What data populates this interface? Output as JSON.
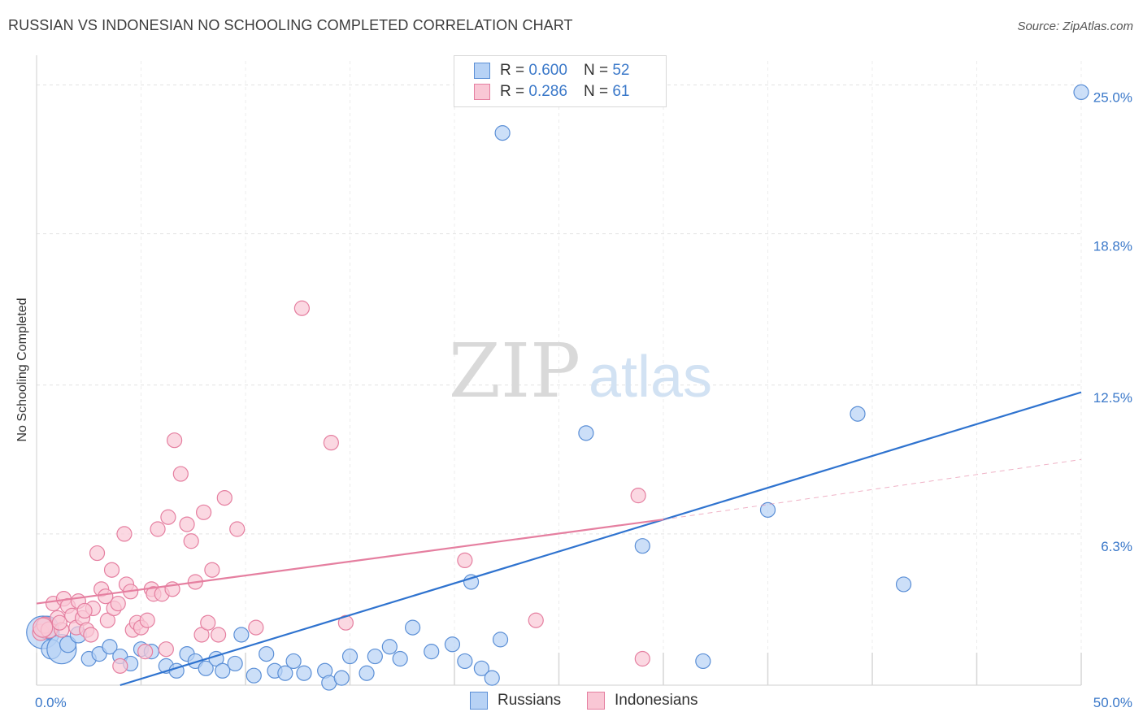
{
  "header": {
    "title": "RUSSIAN VS INDONESIAN NO SCHOOLING COMPLETED CORRELATION CHART",
    "source": "Source: ZipAtlas.com"
  },
  "watermark": {
    "zip": "ZIP",
    "atlas": "atlas"
  },
  "legend": {
    "r_label": "R =",
    "n_label": "N =",
    "rows": [
      {
        "name": "Russians",
        "r": "0.600",
        "n": "52",
        "fill": "#b7d2f5",
        "stroke": "#5b8fd6"
      },
      {
        "name": "Indonesians",
        "r": "0.286",
        "n": "61",
        "fill": "#f9c7d5",
        "stroke": "#e57fa0"
      }
    ]
  },
  "chart_data": {
    "type": "scatter",
    "title": "RUSSIAN VS INDONESIAN NO SCHOOLING COMPLETED CORRELATION CHART",
    "xlabel": "",
    "ylabel": "No Schooling Completed",
    "xlim": [
      0,
      50
    ],
    "ylim": [
      0,
      26
    ],
    "x_tick_labels": [
      "0.0%",
      "50.0%"
    ],
    "y_ticks": [
      6.3,
      12.5,
      18.8,
      25.0
    ],
    "y_tick_labels": [
      "6.3%",
      "12.5%",
      "18.8%",
      "25.0%"
    ],
    "grid": true,
    "series": [
      {
        "name": "Russians",
        "color": "#5b8fd6",
        "fill": "#b7d2f5",
        "points": [
          [
            0.3,
            2.2,
            20
          ],
          [
            0.5,
            2.4,
            14
          ],
          [
            0.7,
            1.5,
            12
          ],
          [
            1.2,
            1.5,
            18
          ],
          [
            1.5,
            1.7,
            10
          ],
          [
            2.0,
            2.1,
            10
          ],
          [
            2.5,
            1.1,
            9
          ],
          [
            3.0,
            1.3,
            9
          ],
          [
            3.5,
            1.6,
            9
          ],
          [
            4.0,
            1.2,
            9
          ],
          [
            4.5,
            0.9,
            9
          ],
          [
            5.0,
            1.5,
            9
          ],
          [
            5.5,
            1.4,
            9
          ],
          [
            6.2,
            0.8,
            9
          ],
          [
            6.7,
            0.6,
            9
          ],
          [
            7.2,
            1.3,
            9
          ],
          [
            7.6,
            1.0,
            9
          ],
          [
            8.1,
            0.7,
            9
          ],
          [
            8.6,
            1.1,
            9
          ],
          [
            8.9,
            0.6,
            9
          ],
          [
            9.5,
            0.9,
            9
          ],
          [
            9.8,
            2.1,
            9
          ],
          [
            10.4,
            0.4,
            9
          ],
          [
            11.0,
            1.3,
            9
          ],
          [
            11.4,
            0.6,
            9
          ],
          [
            11.9,
            0.5,
            9
          ],
          [
            12.3,
            1.0,
            9
          ],
          [
            12.8,
            0.5,
            9
          ],
          [
            13.8,
            0.6,
            9
          ],
          [
            14.0,
            0.1,
            9
          ],
          [
            14.6,
            0.3,
            9
          ],
          [
            15.0,
            1.2,
            9
          ],
          [
            15.8,
            0.5,
            9
          ],
          [
            16.2,
            1.2,
            9
          ],
          [
            16.9,
            1.6,
            9
          ],
          [
            17.4,
            1.1,
            9
          ],
          [
            18.0,
            2.4,
            9
          ],
          [
            18.9,
            1.4,
            9
          ],
          [
            19.9,
            1.7,
            9
          ],
          [
            20.5,
            1.0,
            9
          ],
          [
            20.8,
            4.3,
            9
          ],
          [
            21.3,
            0.7,
            9
          ],
          [
            21.8,
            0.3,
            9
          ],
          [
            22.2,
            1.9,
            9
          ],
          [
            22.3,
            23.0,
            9
          ],
          [
            26.3,
            10.5,
            9
          ],
          [
            29.0,
            5.8,
            9
          ],
          [
            31.9,
            1.0,
            9
          ],
          [
            35.0,
            7.3,
            9
          ],
          [
            39.3,
            11.3,
            9
          ],
          [
            41.5,
            4.2,
            9
          ],
          [
            50.0,
            24.7,
            9
          ]
        ],
        "trend": {
          "x": [
            4.0,
            50.0
          ],
          "y": [
            0.0,
            12.2
          ]
        }
      },
      {
        "name": "Indonesians",
        "color": "#e57fa0",
        "fill": "#f9c7d5",
        "points": [
          [
            0.2,
            2.2,
            10
          ],
          [
            0.4,
            2.5,
            10
          ],
          [
            0.6,
            2.3,
            10
          ],
          [
            0.8,
            3.4,
            9
          ],
          [
            1.0,
            2.8,
            9
          ],
          [
            1.2,
            2.3,
            9
          ],
          [
            1.3,
            3.6,
            9
          ],
          [
            1.5,
            3.3,
            9
          ],
          [
            1.7,
            2.9,
            9
          ],
          [
            1.9,
            2.4,
            9
          ],
          [
            2.0,
            3.5,
            9
          ],
          [
            2.2,
            2.8,
            9
          ],
          [
            2.4,
            2.3,
            9
          ],
          [
            2.6,
            2.1,
            9
          ],
          [
            2.7,
            3.2,
            9
          ],
          [
            2.9,
            5.5,
            9
          ],
          [
            3.1,
            4.0,
            9
          ],
          [
            3.3,
            3.7,
            9
          ],
          [
            3.4,
            2.7,
            9
          ],
          [
            3.6,
            4.8,
            9
          ],
          [
            3.7,
            3.2,
            9
          ],
          [
            3.9,
            3.4,
            9
          ],
          [
            4.0,
            0.8,
            9
          ],
          [
            4.2,
            6.3,
            9
          ],
          [
            4.3,
            4.2,
            9
          ],
          [
            4.5,
            3.9,
            9
          ],
          [
            4.6,
            2.3,
            9
          ],
          [
            4.8,
            2.6,
            9
          ],
          [
            5.0,
            2.4,
            9
          ],
          [
            5.2,
            1.4,
            9
          ],
          [
            5.3,
            2.7,
            9
          ],
          [
            5.5,
            4.0,
            9
          ],
          [
            5.6,
            3.8,
            9
          ],
          [
            5.8,
            6.5,
            9
          ],
          [
            6.0,
            3.8,
            9
          ],
          [
            6.2,
            1.5,
            9
          ],
          [
            6.3,
            7.0,
            9
          ],
          [
            6.5,
            4.0,
            9
          ],
          [
            6.6,
            10.2,
            9
          ],
          [
            6.9,
            8.8,
            9
          ],
          [
            7.2,
            6.7,
            9
          ],
          [
            7.4,
            6.0,
            9
          ],
          [
            7.6,
            4.3,
            9
          ],
          [
            7.9,
            2.1,
            9
          ],
          [
            8.0,
            7.2,
            9
          ],
          [
            8.2,
            2.6,
            9
          ],
          [
            8.4,
            4.8,
            9
          ],
          [
            8.7,
            2.1,
            9
          ],
          [
            9.0,
            7.8,
            9
          ],
          [
            9.6,
            6.5,
            9
          ],
          [
            10.5,
            2.4,
            9
          ],
          [
            12.7,
            15.7,
            9
          ],
          [
            14.1,
            10.1,
            9
          ],
          [
            14.8,
            2.6,
            9
          ],
          [
            20.5,
            5.2,
            9
          ],
          [
            23.9,
            2.7,
            9
          ],
          [
            28.8,
            7.9,
            9
          ],
          [
            29.0,
            1.1,
            9
          ],
          [
            0.3,
            2.4,
            12
          ],
          [
            1.1,
            2.6,
            9
          ],
          [
            2.3,
            3.1,
            9
          ]
        ],
        "trend": {
          "x": [
            0.0,
            30.0
          ],
          "y": [
            3.4,
            6.9
          ]
        },
        "trend_extension": {
          "x": [
            30.0,
            50.0
          ],
          "y": [
            6.9,
            9.4
          ]
        }
      }
    ]
  }
}
